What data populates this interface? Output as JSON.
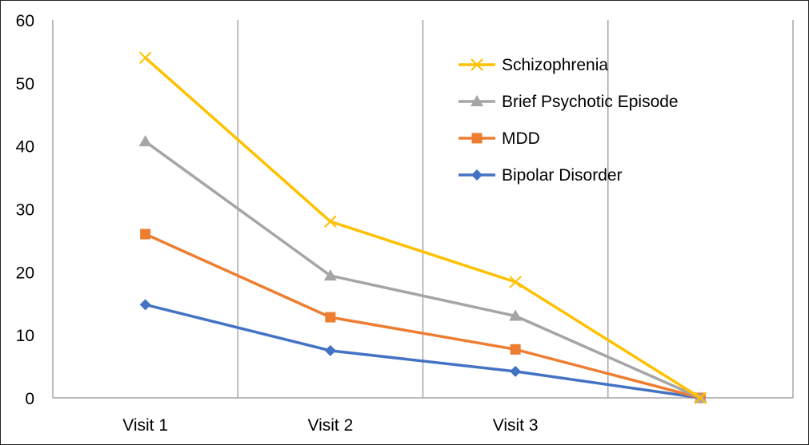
{
  "chart_data": {
    "type": "line",
    "title": "",
    "xlabel": "",
    "ylabel": "",
    "categories": [
      "Visit 1",
      "Visit 2",
      "Visit 3",
      ""
    ],
    "ylim": [
      0,
      60
    ],
    "yticks": [
      0,
      10,
      20,
      30,
      40,
      50,
      60
    ],
    "grid": "vertical",
    "legend_position": "top-right",
    "series": [
      {
        "name": "Schizophrenia",
        "values": [
          54,
          28,
          18.4,
          0
        ],
        "color": "#FFC000",
        "marker": "x"
      },
      {
        "name": "Brief Psychotic Episode",
        "values": [
          40.7,
          19.4,
          13,
          0
        ],
        "color": "#A5A5A5",
        "marker": "triangle"
      },
      {
        "name": "MDD",
        "values": [
          26,
          12.8,
          7.7,
          0
        ],
        "color": "#ED7D31",
        "marker": "square"
      },
      {
        "name": "Bipolar Disorder",
        "values": [
          14.8,
          7.5,
          4.2,
          0
        ],
        "color": "#4472C4",
        "marker": "diamond"
      }
    ]
  }
}
